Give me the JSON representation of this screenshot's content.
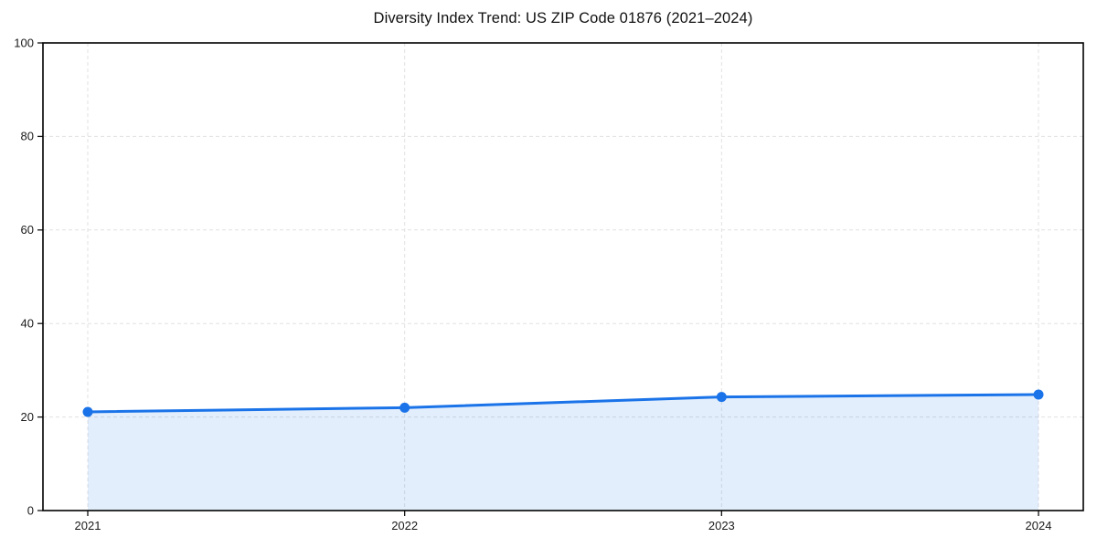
{
  "chart_data": {
    "type": "line",
    "title": "Diversity Index Trend: US ZIP Code 01876 (2021–2024)",
    "categories": [
      "2021",
      "2022",
      "2023",
      "2024"
    ],
    "series": [
      {
        "name": "Diversity Index",
        "values": [
          21.1,
          22.0,
          24.3,
          24.8
        ]
      }
    ],
    "xlabel": "",
    "ylabel": "",
    "ylim": [
      0,
      100
    ],
    "yticks": [
      0,
      20,
      40,
      60,
      80,
      100
    ],
    "grid": "dashed-both-axes",
    "legend": "none",
    "area_fill": true,
    "marker": "circle",
    "colors": {
      "line": "#1a73e8",
      "marker": "#1a73e8",
      "area_fill": "rgba(26,115,232,0.12)",
      "grid": "#e1e1e1",
      "axis_border": "#000000",
      "tick": "#111111",
      "tick_label": "#1a1a1a",
      "title": "#111111",
      "background": "#ffffff"
    }
  }
}
